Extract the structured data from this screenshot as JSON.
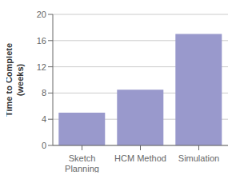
{
  "chart_data": {
    "type": "bar",
    "ylabel": "Time to Complete\n(weeks)",
    "categories": [
      "Sketch\nPlanning",
      "HCM Method",
      "Simulation"
    ],
    "values": [
      5.0,
      8.5,
      17.0
    ],
    "color": "#9999cc",
    "ylim": [
      0,
      20
    ],
    "yticks": [
      0,
      4,
      8,
      12,
      16,
      20
    ],
    "grid": true
  }
}
